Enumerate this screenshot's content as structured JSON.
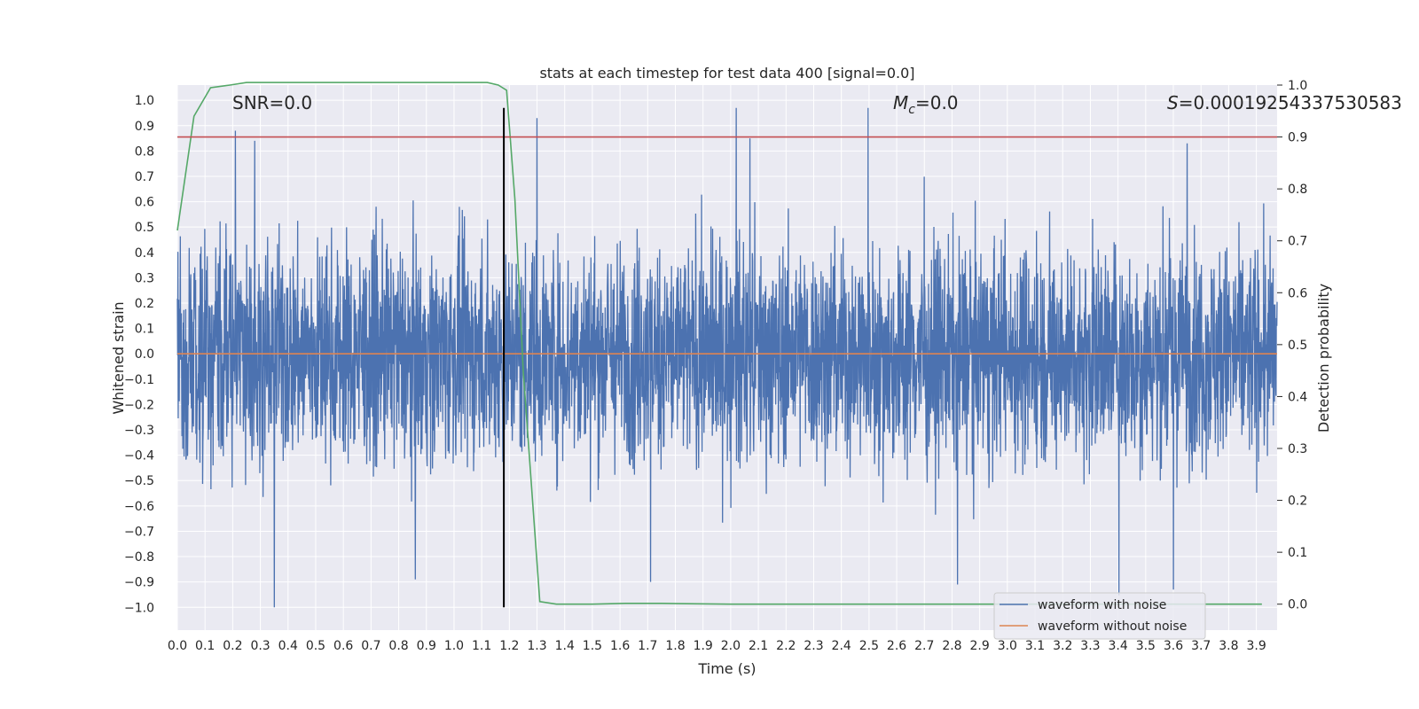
{
  "chart_data": {
    "type": "line",
    "title": "stats at each timestep for test data 400 [signal=0.0]",
    "xlabel": "Time (s)",
    "ylabel_left": "Whitened strain",
    "ylabel_right": "Detection probability",
    "xlim": [
      0.0,
      3.975
    ],
    "ylim_left": [
      -1.09,
      1.06
    ],
    "ylim_right": [
      -0.05,
      1.0
    ],
    "x_ticks": [
      "0.0",
      "0.1",
      "0.2",
      "0.3",
      "0.4",
      "0.5",
      "0.6",
      "0.7",
      "0.8",
      "0.9",
      "1.0",
      "1.1",
      "1.2",
      "1.3",
      "1.4",
      "1.5",
      "1.6",
      "1.7",
      "1.8",
      "1.9",
      "2.0",
      "2.1",
      "2.2",
      "2.3",
      "2.4",
      "2.5",
      "2.6",
      "2.7",
      "2.8",
      "2.9",
      "3.0",
      "3.1",
      "3.2",
      "3.3",
      "3.4",
      "3.5",
      "3.6",
      "3.7",
      "3.8",
      "3.9"
    ],
    "y_ticks_left": [
      "1.0",
      "0.9",
      "0.8",
      "0.7",
      "0.6",
      "0.5",
      "0.4",
      "0.3",
      "0.2",
      "0.1",
      "0.0",
      "-0.1",
      "-0.2",
      "-0.3",
      "-0.4",
      "-0.5",
      "-0.6",
      "-0.7",
      "-0.8",
      "-0.9",
      "-1.0"
    ],
    "y_ticks_right": [
      "1.0",
      "0.9",
      "0.8",
      "0.7",
      "0.6",
      "0.5",
      "0.4",
      "0.3",
      "0.2",
      "0.1",
      "0.0"
    ],
    "grid": true,
    "legend_position": "bottom-right",
    "annotations": {
      "snr": "SNR=0.0",
      "mc_symbol": "M",
      "mc_subscript": "c",
      "mc_value": "=0.0",
      "s_symbol": "S",
      "s_value": "=0.00019254337530583"
    },
    "series": [
      {
        "name": "waveform with noise",
        "axis": "left",
        "color": "#4c72b0",
        "style": "noise",
        "amplitude_range": [
          -1.0,
          0.97
        ],
        "notable_peaks": [
          {
            "x": 0.21,
            "y": 0.88
          },
          {
            "x": 0.28,
            "y": 0.84
          },
          {
            "x": 2.02,
            "y": 0.97
          },
          {
            "x": 2.07,
            "y": 0.85
          },
          {
            "x": 1.3,
            "y": 0.93
          },
          {
            "x": 3.65,
            "y": 0.83
          },
          {
            "x": 0.35,
            "y": -1.0
          },
          {
            "x": 3.6,
            "y": -0.93
          },
          {
            "x": 2.82,
            "y": -0.91
          },
          {
            "x": 0.86,
            "y": -0.89
          },
          {
            "x": 1.71,
            "y": -0.9
          }
        ]
      },
      {
        "name": "waveform without noise",
        "axis": "left",
        "color": "#dd8452",
        "x": [
          0.0,
          3.975
        ],
        "y": [
          0.0,
          0.0
        ]
      },
      {
        "axis": "right",
        "color": "#55a868",
        "x": [
          0.0,
          0.06,
          0.12,
          0.19,
          0.25,
          0.5,
          0.75,
          1.0,
          1.12,
          1.16,
          1.19,
          1.22,
          1.25,
          1.31,
          1.37,
          1.5,
          1.62,
          1.75,
          2.0,
          2.5,
          3.0,
          3.5,
          3.92
        ],
        "y": [
          0.72,
          0.94,
          0.995,
          1.0,
          1.005,
          1.005,
          1.005,
          1.005,
          1.005,
          1.0,
          0.99,
          0.78,
          0.45,
          0.005,
          0.0,
          0.0,
          0.0015,
          0.0015,
          0.0,
          0.0,
          0.0,
          0.0,
          0.0
        ]
      },
      {
        "axis": "right",
        "color": "#c44e52",
        "x": [
          0.0,
          3.975
        ],
        "y": [
          0.9,
          0.9
        ]
      },
      {
        "axis": "left",
        "color": "#000000",
        "x": [
          1.18,
          1.18
        ],
        "y": [
          -1.0,
          0.97
        ]
      }
    ]
  }
}
